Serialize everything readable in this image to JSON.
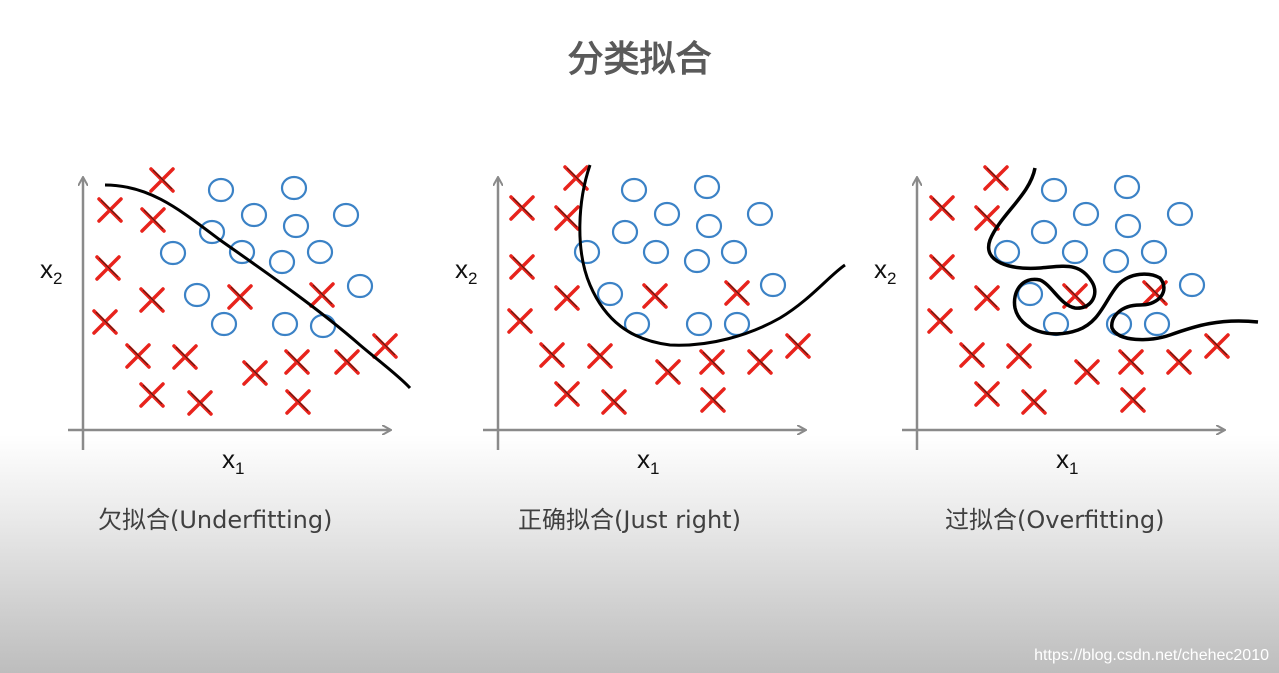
{
  "title": "分类拟合",
  "panels": [
    {
      "id": "under",
      "caption": "欠拟合(Underfitting)",
      "xlabel": "x",
      "xsub": "1",
      "ylabel": "x",
      "ysub": "2"
    },
    {
      "id": "right",
      "caption": "正确拟合(Just right)",
      "xlabel": "x",
      "xsub": "1",
      "ylabel": "x",
      "ysub": "2"
    },
    {
      "id": "over",
      "caption": "过拟合(Overfitting)",
      "xlabel": "x",
      "xsub": "1",
      "ylabel": "x",
      "ysub": "2"
    }
  ],
  "watermark": "https://blog.csdn.net/chehec2010",
  "colors": {
    "cross": "#e8231c",
    "circle": "#3b82c6",
    "boundary": "#000000",
    "axis": "#8a8a8a"
  }
}
